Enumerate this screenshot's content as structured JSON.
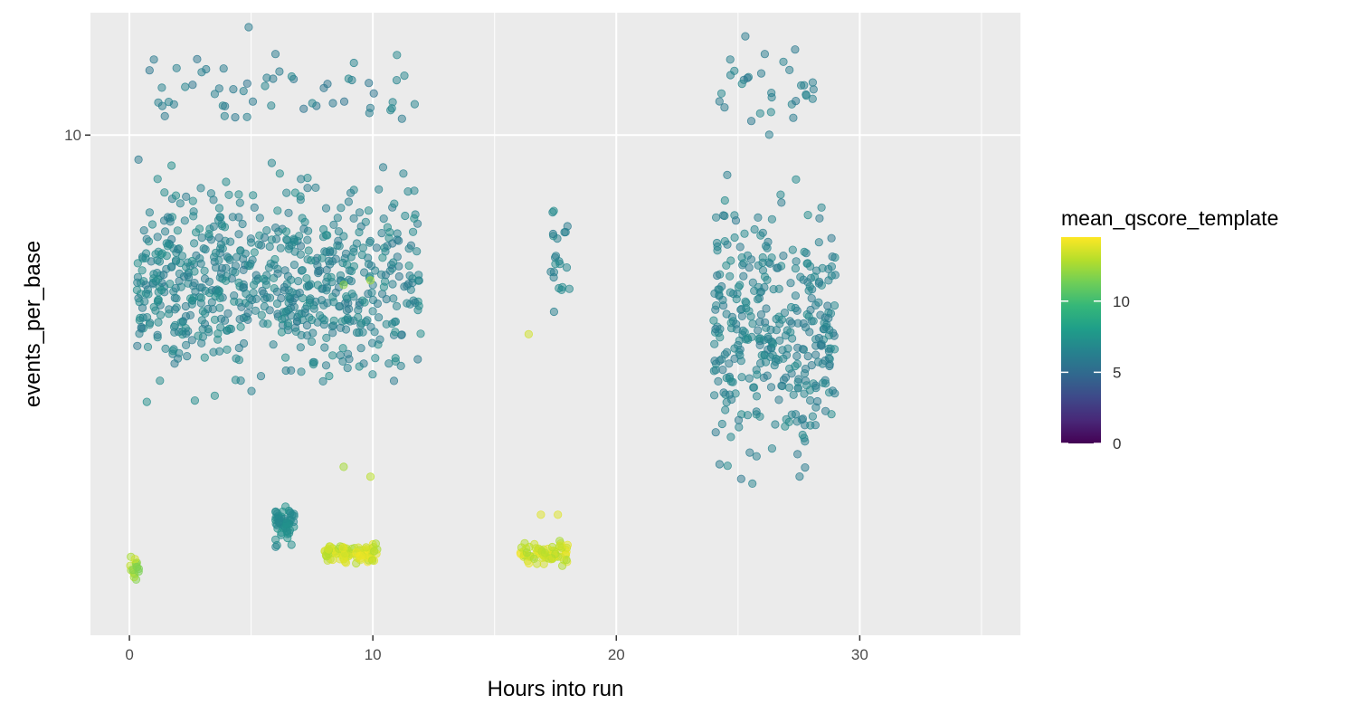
{
  "chart_data": {
    "type": "scatter",
    "title": "",
    "xlabel": "Hours into run",
    "ylabel": "events_per_base",
    "xlim": [
      -1.6,
      36.6
    ],
    "ylim": [
      1.2,
      16.8
    ],
    "y_scale": "log10",
    "x_ticks": [
      0,
      10,
      20,
      30
    ],
    "y_ticks": [
      10
    ],
    "grid": true,
    "legend": {
      "title": "mean_qscore_template",
      "type": "colorbar",
      "position": "right",
      "limits": [
        0,
        14.5
      ],
      "breaks": [
        0,
        5,
        10
      ],
      "colors": [
        "#440154",
        "#482878",
        "#3e4989",
        "#31688e",
        "#26828e",
        "#1f9e89",
        "#35b779",
        "#6ece58",
        "#b5de2b",
        "#fde725"
      ]
    },
    "panel_background": "#ebebeb",
    "point_alpha": 0.5,
    "clusters": [
      {
        "x_range": [
          0.0,
          0.5
        ],
        "y_range": [
          1.45,
          1.72
        ],
        "q_range": [
          11.5,
          13.5
        ],
        "n": 16
      },
      {
        "x_range": [
          0.3,
          12.0
        ],
        "y_range": [
          3.0,
          9.6
        ],
        "q_range": [
          5.8,
          7.2
        ],
        "n": 700
      },
      {
        "x_range": [
          0.5,
          11.8
        ],
        "y_range": [
          9.6,
          14.8
        ],
        "q_range": [
          5.5,
          6.8
        ],
        "n": 55
      },
      {
        "x_range": [
          6.0,
          6.8
        ],
        "y_range": [
          1.72,
          2.15
        ],
        "q_range": [
          6.5,
          7.5
        ],
        "n": 55
      },
      {
        "x_range": [
          8.0,
          10.2
        ],
        "y_range": [
          1.6,
          1.8
        ],
        "q_range": [
          12.5,
          14.3
        ],
        "n": 95
      },
      {
        "x_range": [
          16.0,
          18.0
        ],
        "y_range": [
          1.58,
          1.82
        ],
        "q_range": [
          12.5,
          14.3
        ],
        "n": 75
      },
      {
        "x_range": [
          17.3,
          18.1
        ],
        "y_range": [
          4.2,
          8.3
        ],
        "q_range": [
          6.0,
          7.0
        ],
        "n": 22
      },
      {
        "x_range": [
          24.0,
          29.0
        ],
        "y_range": [
          2.0,
          9.4
        ],
        "q_range": [
          5.8,
          7.0
        ],
        "n": 360
      },
      {
        "x_range": [
          24.0,
          28.2
        ],
        "y_range": [
          9.5,
          15.5
        ],
        "q_range": [
          5.6,
          6.8
        ],
        "n": 30
      }
    ],
    "outliers": [
      {
        "x": 4.9,
        "y": 15.8,
        "q": 6.0
      },
      {
        "x": 25.3,
        "y": 15.2,
        "q": 6.0
      },
      {
        "x": 6.0,
        "y": 14.1,
        "q": 6.0
      },
      {
        "x": 26.1,
        "y": 14.1,
        "q": 6.0
      },
      {
        "x": 8.8,
        "y": 5.3,
        "q": 12.0
      },
      {
        "x": 9.9,
        "y": 5.4,
        "q": 12.5
      },
      {
        "x": 8.8,
        "y": 2.45,
        "q": 12.5
      },
      {
        "x": 9.9,
        "y": 2.35,
        "q": 13.0
      },
      {
        "x": 16.4,
        "y": 4.3,
        "q": 13.5
      },
      {
        "x": 17.6,
        "y": 2.0,
        "q": 13.8
      },
      {
        "x": 16.9,
        "y": 2.0,
        "q": 13.8
      }
    ]
  }
}
